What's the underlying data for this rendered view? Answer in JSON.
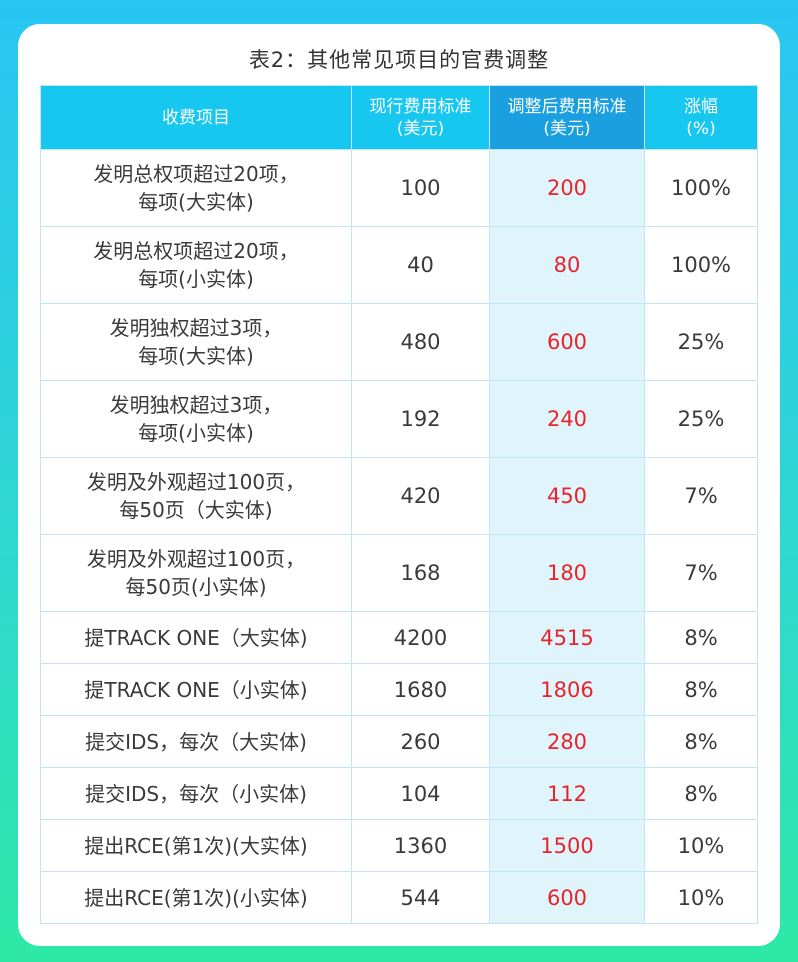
{
  "title": "表2：其他常见项目的官费调整",
  "headers": {
    "item": "收费项目",
    "current": "现行费用标准\n(美元)",
    "adjusted": "调整后费用标准\n(美元)",
    "increase": "涨幅\n(%)"
  },
  "rows": [
    {
      "item": "发明总权项超过20项，\n每项(大实体)",
      "current": "100",
      "adjusted": "200",
      "increase": "100%"
    },
    {
      "item": "发明总权项超过20项，\n每项(小实体)",
      "current": "40",
      "adjusted": "80",
      "increase": "100%"
    },
    {
      "item": "发明独权超过3项，\n每项(大实体)",
      "current": "480",
      "adjusted": "600",
      "increase": "25%"
    },
    {
      "item": "发明独权超过3项，\n每项(小实体)",
      "current": "192",
      "adjusted": "240",
      "increase": "25%"
    },
    {
      "item": "发明及外观超过100页，\n每50页（大实体)",
      "current": "420",
      "adjusted": "450",
      "increase": "7%"
    },
    {
      "item": "发明及外观超过100页，\n每50页(小实体)",
      "current": "168",
      "adjusted": "180",
      "increase": "7%"
    },
    {
      "item": "提TRACK ONE（大实体)",
      "current": "4200",
      "adjusted": "4515",
      "increase": "8%"
    },
    {
      "item": "提TRACK ONE（小实体)",
      "current": "1680",
      "adjusted": "1806",
      "increase": "8%"
    },
    {
      "item": "提交IDS，每次（大实体)",
      "current": "260",
      "adjusted": "280",
      "increase": "8%"
    },
    {
      "item": "提交IDS，每次（小实体)",
      "current": "104",
      "adjusted": "112",
      "increase": "8%"
    },
    {
      "item": "提出RCE(第1次)(大实体)",
      "current": "1360",
      "adjusted": "1500",
      "increase": "10%"
    },
    {
      "item": "提出RCE(第1次)(小实体)",
      "current": "544",
      "adjusted": "600",
      "increase": "10%"
    }
  ]
}
